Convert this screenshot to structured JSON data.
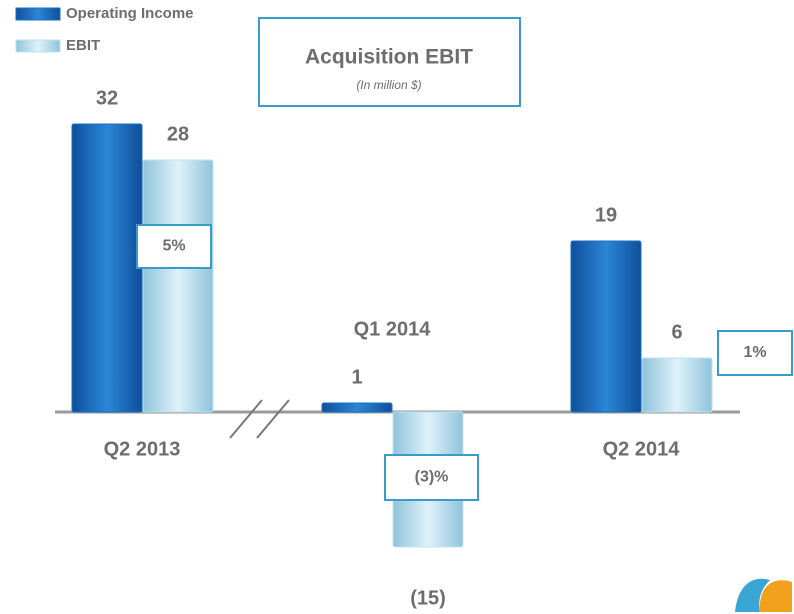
{
  "chart_data": {
    "type": "bar",
    "title": "Acquisition EBIT",
    "subtitle": "(In million $)",
    "categories": [
      "Q2 2013",
      "Q1 2014",
      "Q2 2014"
    ],
    "series": [
      {
        "name": "Operating Income",
        "color": "#1b6ec2",
        "values": [
          32,
          1,
          19
        ]
      },
      {
        "name": "EBIT",
        "color": "#bfe3f2",
        "values": [
          28,
          -15,
          6
        ],
        "value_labels": [
          "28",
          "(15)",
          "6"
        ]
      }
    ],
    "margins": [
      "5%",
      "(3)%",
      "1%"
    ]
  }
}
